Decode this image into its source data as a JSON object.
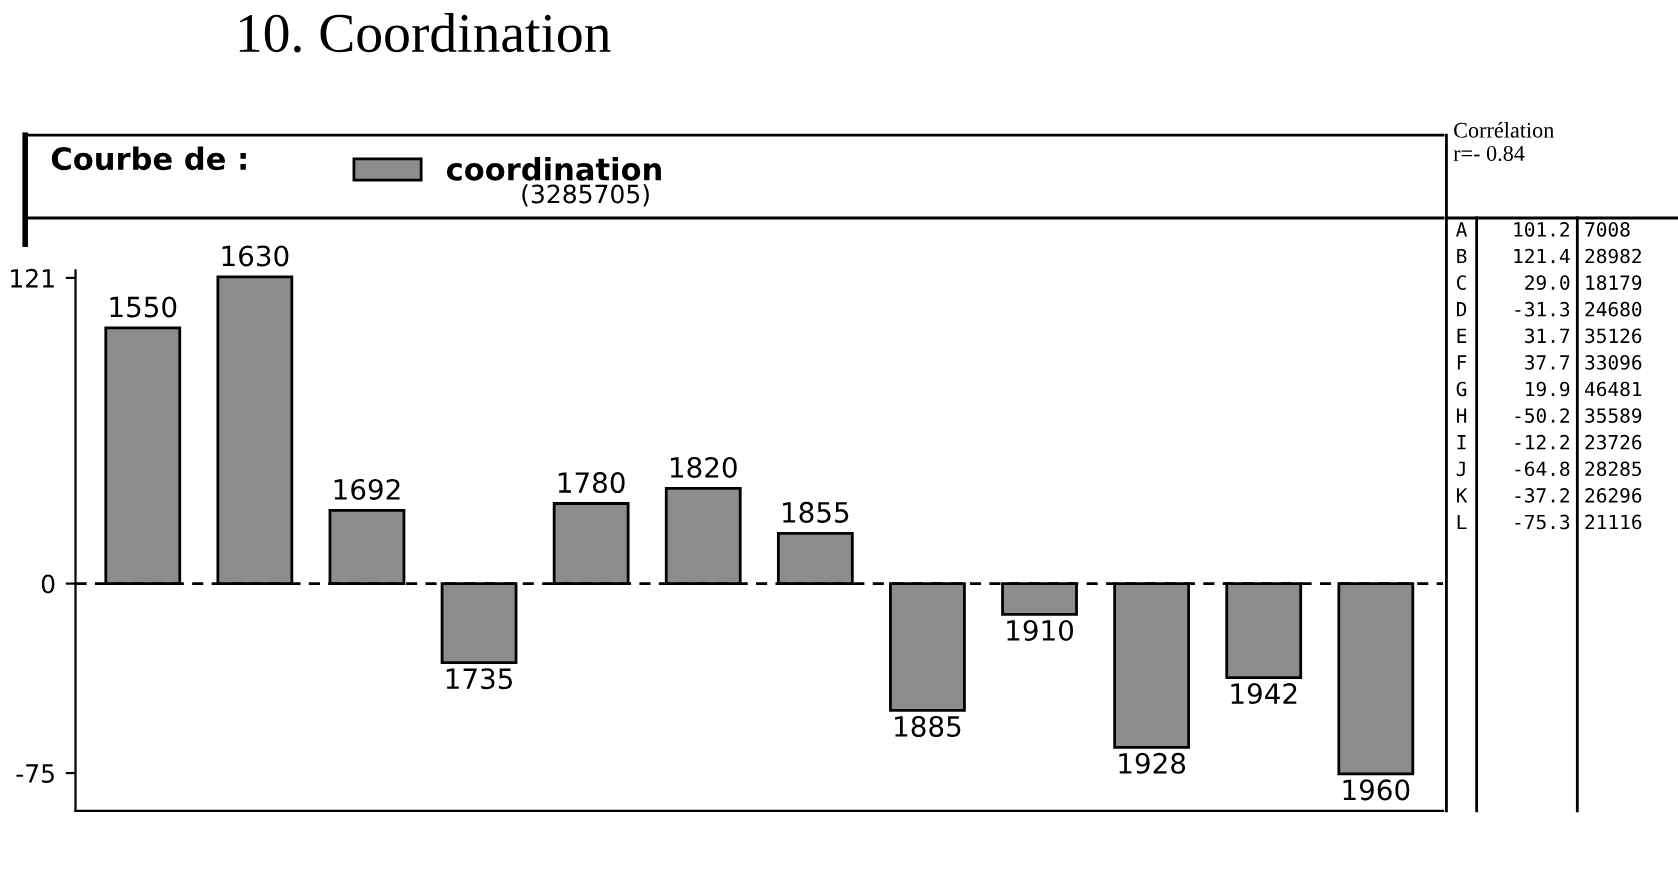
{
  "chart_data": {
    "type": "bar",
    "title": "10. Coordination",
    "categories": [
      "1550",
      "1630",
      "1692",
      "1735",
      "1780",
      "1820",
      "1855",
      "1885",
      "1910",
      "1928",
      "1942",
      "1960"
    ],
    "series": [
      {
        "name": "coordination",
        "color": "#8c8c8c",
        "values": [
          101.2,
          121.4,
          29.0,
          -31.3,
          31.7,
          37.7,
          19.9,
          -50.2,
          -12.2,
          -64.8,
          -37.2,
          -75.3
        ]
      }
    ],
    "ylim": [
      -90,
      124
    ],
    "yticks": [
      -75,
      0,
      121
    ],
    "grid": false,
    "legend": "top left",
    "ref_lines": [
      {
        "axis": "y",
        "value": 0,
        "line_style": "dashed",
        "color": "#000000"
      }
    ],
    "annotations": [
      "Courbe de :",
      "(3285705)",
      "Corrélation\nr=- 0.84",
      "A 101.2 7008",
      "B 121.4 28982",
      "C 29.0 18179",
      "D -31.3 24680",
      "E 31.7 35126",
      "F 37.7 33096",
      "G 19.9 46481",
      "H -50.2 35589",
      "I -12.2 23726",
      "J -64.8 28285",
      "K -37.2 26296",
      "L -75.3 21116"
    ]
  }
}
